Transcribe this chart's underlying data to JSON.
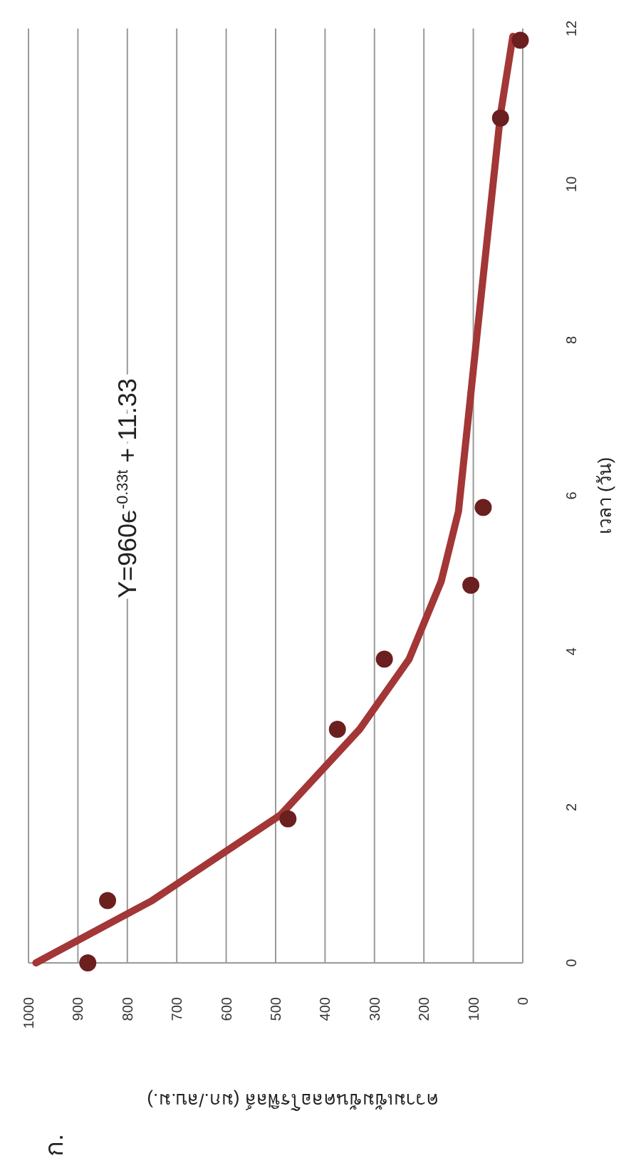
{
  "chart_data": {
    "type": "scatter",
    "title": "ก.",
    "xlabel": "ความเข้มข้นคลอโรฟิลล์ (มก./ลบ.ม.)",
    "ylabel": "เวลา (วัน)",
    "annotations": [
      "Y=960e$^{-0.33t}$ + 11.33"
    ],
    "series": [
      {
        "color": "#6b1f1f",
        "marker": "circle",
        "x": [
          880,
          840,
          475,
          375,
          280,
          105,
          80,
          45,
          5
        ],
        "values": [
          0,
          0.8,
          1.85,
          3,
          3.9,
          4.85,
          5.85,
          10.85,
          11.85
        ]
      },
      {
        "type": "line",
        "color": "#a33636",
        "marker": "none",
        "x": [
          985,
          750,
          490,
          330,
          230,
          165,
          130,
          92,
          45,
          20
        ],
        "values": [
          0,
          0.8,
          1.9,
          3,
          3.9,
          4.9,
          5.8,
          8.1,
          10.9,
          11.9
        ]
      }
    ],
    "xlim": [
      1000,
      0
    ],
    "xticks": [
      1000,
      900,
      800,
      700,
      600,
      500,
      400,
      300,
      200,
      100,
      0
    ],
    "ylim": [
      0,
      12
    ],
    "yticks": [
      0,
      2,
      4,
      6,
      8,
      10,
      12
    ],
    "grid": "x"
  }
}
